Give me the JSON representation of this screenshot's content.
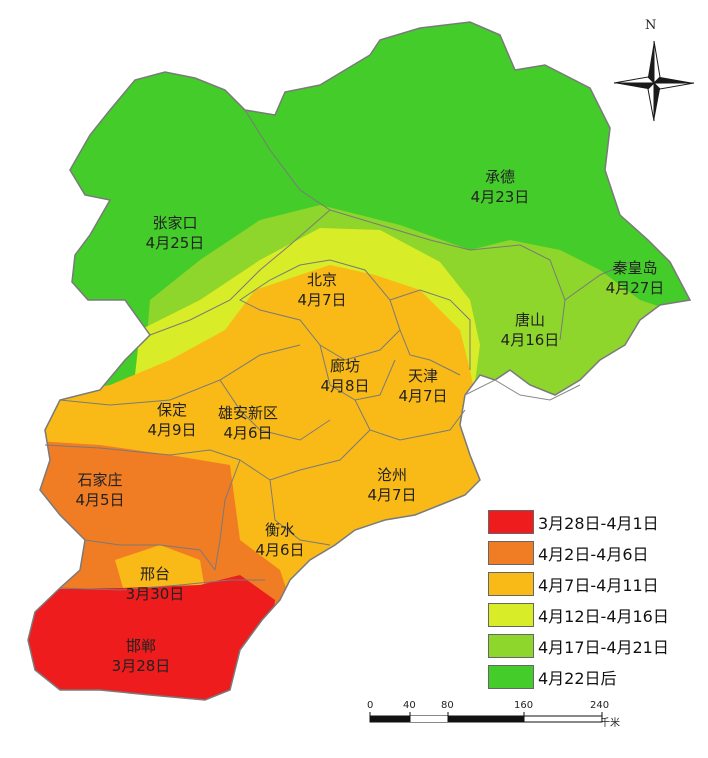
{
  "map": {
    "colors": {
      "red": "#ee1c1c",
      "orange": "#f07c24",
      "amber": "#f9ba17",
      "yellow_green": "#d8ec27",
      "light_green": "#8ed62c",
      "green": "#44cc2a",
      "border": "#7a7a7a"
    },
    "cities": [
      {
        "name": "张家口",
        "date": "4月25日"
      },
      {
        "name": "承德",
        "date": "4月23日"
      },
      {
        "name": "秦皇岛",
        "date": "4月27日"
      },
      {
        "name": "北京",
        "date": "4月7日"
      },
      {
        "name": "唐山",
        "date": "4月16日"
      },
      {
        "name": "廊坊",
        "date": "4月8日"
      },
      {
        "name": "天津",
        "date": "4月7日"
      },
      {
        "name": "保定",
        "date": "4月9日"
      },
      {
        "name": "雄安新区",
        "date": "4月6日"
      },
      {
        "name": "石家庄",
        "date": "4月5日"
      },
      {
        "name": "沧州",
        "date": "4月7日"
      },
      {
        "name": "衡水",
        "date": "4月6日"
      },
      {
        "name": "邢台",
        "date": "3月30日"
      },
      {
        "name": "邯郸",
        "date": "3月28日"
      }
    ]
  },
  "legend": {
    "items": [
      {
        "label": "3月28日-4月1日",
        "color": "#ee1c1c"
      },
      {
        "label": "4月2日-4月6日",
        "color": "#f07c24"
      },
      {
        "label": "4月7日-4月11日",
        "color": "#f9ba17"
      },
      {
        "label": "4月12日-4月16日",
        "color": "#d8ec27"
      },
      {
        "label": "4月17日-4月21日",
        "color": "#8ed62c"
      },
      {
        "label": "4月22日后",
        "color": "#44cc2a"
      }
    ]
  },
  "compass": {
    "north_label": "N"
  },
  "scale": {
    "ticks": [
      "0",
      "40",
      "80",
      "160",
      "240"
    ],
    "unit": "千米"
  }
}
